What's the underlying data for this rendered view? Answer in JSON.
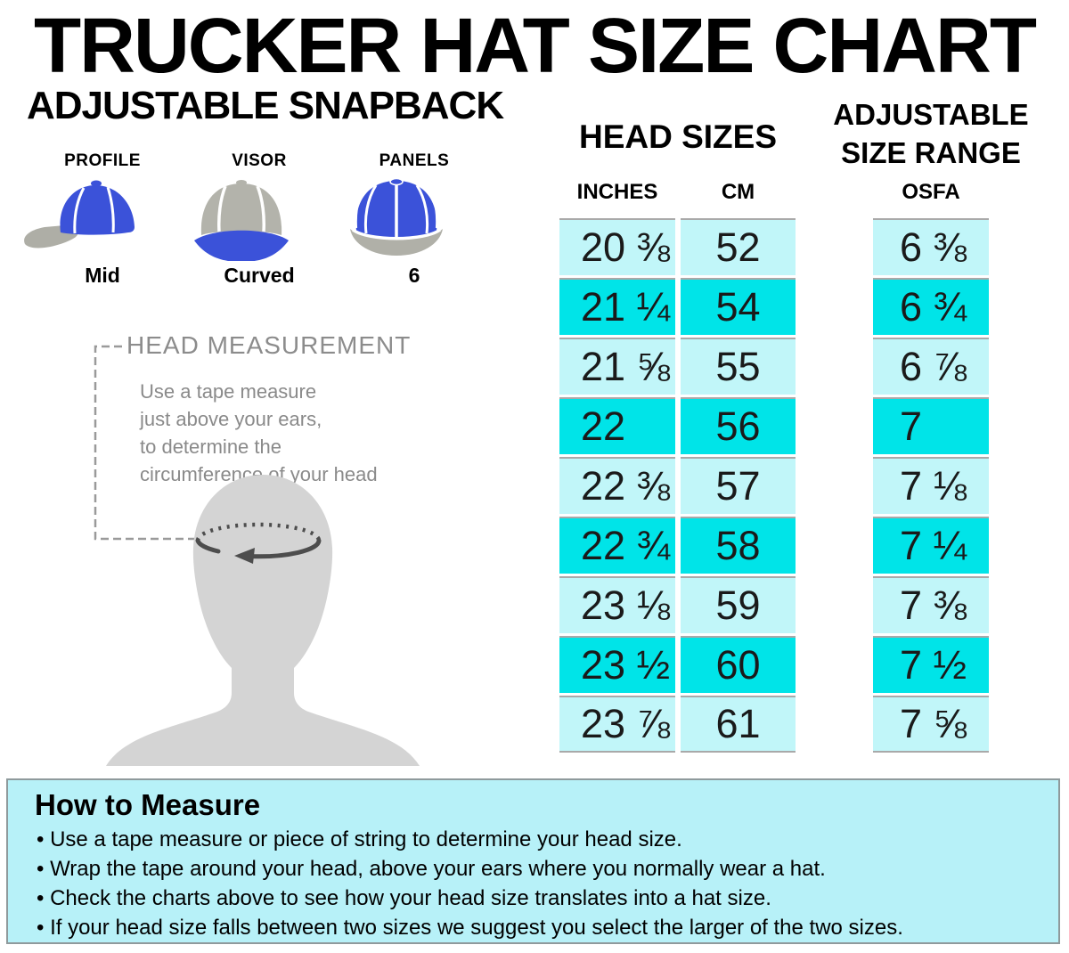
{
  "title": "TRUCKER HAT SIZE CHART",
  "subtitle": "ADJUSTABLE SNAPBACK",
  "features": {
    "items": [
      {
        "label": "PROFILE",
        "value": "Mid",
        "icon": "cap-side-profile-icon"
      },
      {
        "label": "VISOR",
        "value": "Curved",
        "icon": "cap-front-visor-icon"
      },
      {
        "label": "PANELS",
        "value": "6",
        "icon": "cap-top-panels-icon"
      }
    ]
  },
  "measurement": {
    "heading": "HEAD MEASUREMENT",
    "lines": [
      "Use a tape measure",
      "just above your ears,",
      "to determine the",
      "circumference of your head"
    ]
  },
  "head_sizes": {
    "title": "HEAD SIZES",
    "col_inches": "INCHES",
    "col_cm": "CM"
  },
  "size_range": {
    "line1": "ADJUSTABLE",
    "line2": "SIZE RANGE",
    "col_osfa": "OSFA"
  },
  "chart_data": {
    "type": "table",
    "title": "TRUCKER HAT SIZE CHART — ADJUSTABLE SNAPBACK",
    "columns": [
      "INCHES",
      "CM",
      "OSFA"
    ],
    "rows": [
      {
        "inches": "20 ⅜",
        "cm": "52",
        "osfa": "6 ⅜",
        "highlight": false
      },
      {
        "inches": "21 ¼",
        "cm": "54",
        "osfa": "6 ¾",
        "highlight": true
      },
      {
        "inches": "21 ⅝",
        "cm": "55",
        "osfa": "6 ⅞",
        "highlight": false
      },
      {
        "inches": "22",
        "cm": "56",
        "osfa": "7",
        "highlight": true
      },
      {
        "inches": "22 ⅜",
        "cm": "57",
        "osfa": "7 ⅛",
        "highlight": false
      },
      {
        "inches": "22 ¾",
        "cm": "58",
        "osfa": "7 ¼",
        "highlight": true
      },
      {
        "inches": "23 ⅛",
        "cm": "59",
        "osfa": "7 ⅜",
        "highlight": false
      },
      {
        "inches": "23 ½",
        "cm": "60",
        "osfa": "7 ½",
        "highlight": true
      },
      {
        "inches": "23 ⅞",
        "cm": "61",
        "osfa": "7 ⅝",
        "highlight": false
      }
    ]
  },
  "how_to": {
    "heading": "How to Measure",
    "bullets": [
      "Use a tape measure or piece of string to determine your head size.",
      "Wrap the tape around your head, above your ears where you normally wear a hat.",
      "Check the charts above to see how your head size translates into a hat size.",
      "If your head size falls between two sizes we suggest you select the larger of the two sizes."
    ]
  },
  "colors": {
    "row_light": "#c1f6f9",
    "row_highlight": "#00e4e8",
    "panel_background": "#b7f1f8",
    "cell_border": "#a9a9a9",
    "cap_blue": "#3b52d9",
    "cap_gray": "#aeaea6",
    "silhouette_gray": "#d4d4d4",
    "measure_gray": "#8c8c8c"
  }
}
